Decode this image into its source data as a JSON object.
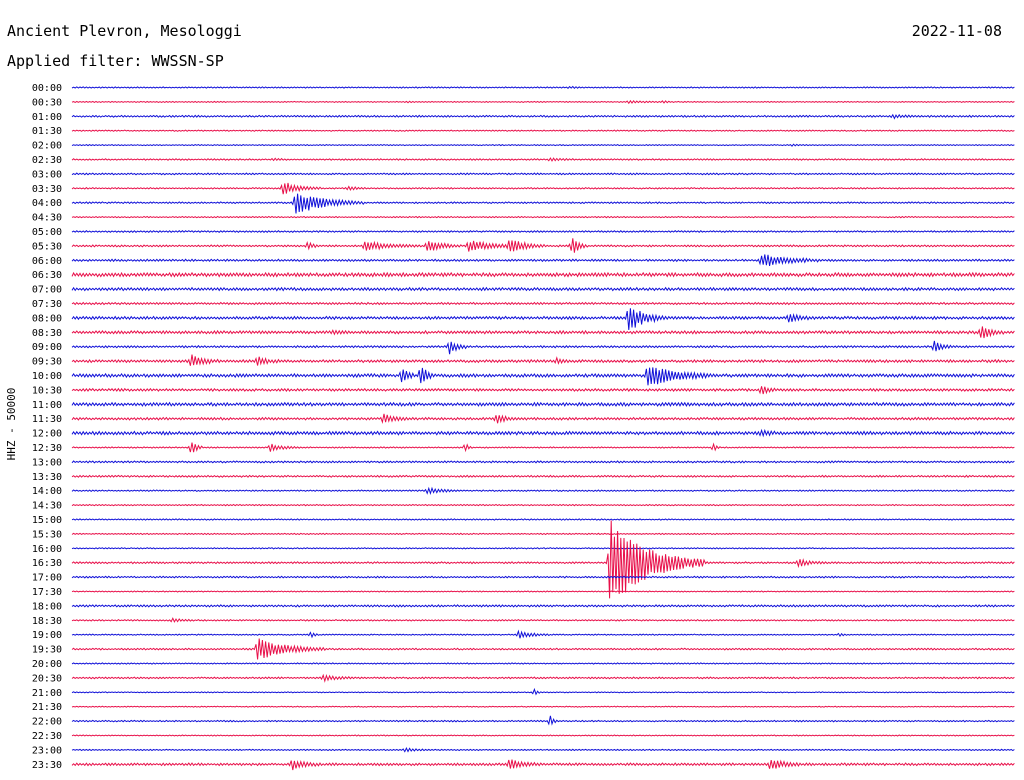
{
  "header": {
    "station": "Ancient Plevron, Mesologgi",
    "date": "2022-11-08",
    "filter": "Applied filter: WWSSN-SP"
  },
  "colors": {
    "trace_a": "#1010d8",
    "trace_b": "#e8104a"
  },
  "chart_data": {
    "type": "line",
    "title": "",
    "ylabel": "HHZ - 50000",
    "xlabel": "",
    "xlim": [
      0,
      30
    ],
    "grid": false,
    "legend": "none",
    "series": [
      {
        "time_label": "00:00",
        "color": "trace_a",
        "noise": 0.6,
        "events": [
          {
            "t": 15.8,
            "amp": 0.8,
            "dur": 0.4
          }
        ]
      },
      {
        "time_label": "00:30",
        "color": "trace_b",
        "noise": 0.5,
        "events": [
          {
            "t": 17.7,
            "amp": 1.2,
            "dur": 0.9
          },
          {
            "t": 18.8,
            "amp": 1.0,
            "dur": 0.3
          },
          {
            "t": 10.7,
            "amp": 0.8,
            "dur": 0.2
          }
        ]
      },
      {
        "time_label": "01:00",
        "color": "trace_a",
        "noise": 0.9,
        "events": [
          {
            "t": 26.1,
            "amp": 1.5,
            "dur": 0.8
          }
        ]
      },
      {
        "time_label": "01:30",
        "color": "trace_b",
        "noise": 0.6,
        "events": []
      },
      {
        "time_label": "02:00",
        "color": "trace_a",
        "noise": 0.5,
        "events": [
          {
            "t": 22.9,
            "amp": 1.0,
            "dur": 0.2
          }
        ]
      },
      {
        "time_label": "02:30",
        "color": "trace_b",
        "noise": 0.7,
        "events": [
          {
            "t": 15.2,
            "amp": 1.4,
            "dur": 0.7
          },
          {
            "t": 6.4,
            "amp": 1.0,
            "dur": 0.4
          }
        ]
      },
      {
        "time_label": "03:00",
        "color": "trace_a",
        "noise": 0.8,
        "events": []
      },
      {
        "time_label": "03:30",
        "color": "trace_b",
        "noise": 0.7,
        "events": [
          {
            "t": 6.7,
            "amp": 7.0,
            "dur": 1.0
          },
          {
            "t": 8.8,
            "amp": 2.0,
            "dur": 0.5
          }
        ]
      },
      {
        "time_label": "04:00",
        "color": "trace_a",
        "noise": 0.8,
        "events": [
          {
            "t": 7.1,
            "amp": 12.0,
            "dur": 1.8
          }
        ]
      },
      {
        "time_label": "04:30",
        "color": "trace_b",
        "noise": 0.6,
        "events": []
      },
      {
        "time_label": "05:00",
        "color": "trace_a",
        "noise": 0.8,
        "events": []
      },
      {
        "time_label": "05:30",
        "color": "trace_b",
        "noise": 0.9,
        "events": [
          {
            "t": 7.5,
            "amp": 4.0,
            "dur": 0.3
          },
          {
            "t": 9.3,
            "amp": 5.0,
            "dur": 1.4
          },
          {
            "t": 11.3,
            "amp": 6.0,
            "dur": 0.9
          },
          {
            "t": 12.6,
            "amp": 6.0,
            "dur": 1.4
          },
          {
            "t": 13.9,
            "amp": 7.0,
            "dur": 1.0
          },
          {
            "t": 15.9,
            "amp": 11.0,
            "dur": 0.4
          }
        ]
      },
      {
        "time_label": "06:00",
        "color": "trace_a",
        "noise": 1.0,
        "events": [
          {
            "t": 21.9,
            "amp": 7.0,
            "dur": 1.6
          }
        ]
      },
      {
        "time_label": "06:30",
        "color": "trace_b",
        "noise": 1.8,
        "events": []
      },
      {
        "time_label": "07:00",
        "color": "trace_a",
        "noise": 1.4,
        "events": []
      },
      {
        "time_label": "07:30",
        "color": "trace_b",
        "noise": 1.0,
        "events": []
      },
      {
        "time_label": "08:00",
        "color": "trace_a",
        "noise": 1.4,
        "events": [
          {
            "t": 17.7,
            "amp": 14.0,
            "dur": 1.0
          },
          {
            "t": 22.8,
            "amp": 4.0,
            "dur": 0.6
          }
        ]
      },
      {
        "time_label": "08:30",
        "color": "trace_b",
        "noise": 1.4,
        "events": [
          {
            "t": 28.9,
            "amp": 7.0,
            "dur": 0.6
          },
          {
            "t": 8.3,
            "amp": 2.0,
            "dur": 0.5
          }
        ]
      },
      {
        "time_label": "09:00",
        "color": "trace_a",
        "noise": 1.0,
        "events": [
          {
            "t": 12.0,
            "amp": 7.0,
            "dur": 0.5
          },
          {
            "t": 27.4,
            "amp": 6.0,
            "dur": 0.5
          }
        ]
      },
      {
        "time_label": "09:30",
        "color": "trace_b",
        "noise": 1.3,
        "events": [
          {
            "t": 3.8,
            "amp": 6.0,
            "dur": 0.7
          },
          {
            "t": 5.9,
            "amp": 4.0,
            "dur": 0.6
          },
          {
            "t": 15.4,
            "amp": 2.5,
            "dur": 0.4
          }
        ]
      },
      {
        "time_label": "10:00",
        "color": "trace_a",
        "noise": 1.6,
        "events": [
          {
            "t": 10.5,
            "amp": 9.0,
            "dur": 0.3
          },
          {
            "t": 11.1,
            "amp": 13.0,
            "dur": 0.3
          },
          {
            "t": 18.3,
            "amp": 12.0,
            "dur": 1.6
          }
        ]
      },
      {
        "time_label": "10:30",
        "color": "trace_b",
        "noise": 1.2,
        "events": [
          {
            "t": 21.9,
            "amp": 5.0,
            "dur": 0.4
          }
        ]
      },
      {
        "time_label": "11:00",
        "color": "trace_a",
        "noise": 1.6,
        "events": []
      },
      {
        "time_label": "11:30",
        "color": "trace_b",
        "noise": 1.2,
        "events": [
          {
            "t": 9.9,
            "amp": 5.0,
            "dur": 0.6
          },
          {
            "t": 13.5,
            "amp": 5.0,
            "dur": 0.5
          }
        ]
      },
      {
        "time_label": "12:00",
        "color": "trace_a",
        "noise": 1.6,
        "events": [
          {
            "t": 21.9,
            "amp": 2.0,
            "dur": 0.6
          }
        ]
      },
      {
        "time_label": "12:30",
        "color": "trace_b",
        "noise": 0.6,
        "events": [
          {
            "t": 3.8,
            "amp": 8.0,
            "dur": 0.3
          },
          {
            "t": 6.3,
            "amp": 4.0,
            "dur": 0.8
          },
          {
            "t": 12.5,
            "amp": 5.0,
            "dur": 0.2
          },
          {
            "t": 20.4,
            "amp": 4.0,
            "dur": 0.2
          }
        ]
      },
      {
        "time_label": "13:00",
        "color": "trace_a",
        "noise": 0.9,
        "events": []
      },
      {
        "time_label": "13:30",
        "color": "trace_b",
        "noise": 0.9,
        "events": []
      },
      {
        "time_label": "14:00",
        "color": "trace_a",
        "noise": 0.7,
        "events": [
          {
            "t": 11.3,
            "amp": 3.0,
            "dur": 0.9
          }
        ]
      },
      {
        "time_label": "14:30",
        "color": "trace_b",
        "noise": 0.6,
        "events": []
      },
      {
        "time_label": "15:00",
        "color": "trace_a",
        "noise": 0.6,
        "events": []
      },
      {
        "time_label": "15:30",
        "color": "trace_b",
        "noise": 0.6,
        "events": []
      },
      {
        "time_label": "16:00",
        "color": "trace_a",
        "noise": 0.6,
        "events": []
      },
      {
        "time_label": "16:30",
        "color": "trace_b",
        "noise": 0.9,
        "events": [
          {
            "t": 17.1,
            "amp": 45.0,
            "dur": 2.5
          },
          {
            "t": 23.1,
            "amp": 4.0,
            "dur": 0.7
          }
        ]
      },
      {
        "time_label": "17:00",
        "color": "trace_a",
        "noise": 0.8,
        "events": []
      },
      {
        "time_label": "17:30",
        "color": "trace_b",
        "noise": 0.5,
        "events": []
      },
      {
        "time_label": "18:00",
        "color": "trace_a",
        "noise": 1.0,
        "events": []
      },
      {
        "time_label": "18:30",
        "color": "trace_b",
        "noise": 0.7,
        "events": [
          {
            "t": 3.2,
            "amp": 2.0,
            "dur": 0.5
          }
        ]
      },
      {
        "time_label": "19:00",
        "color": "trace_a",
        "noise": 0.6,
        "events": [
          {
            "t": 7.6,
            "amp": 3.0,
            "dur": 0.2
          },
          {
            "t": 14.2,
            "amp": 4.0,
            "dur": 0.8
          },
          {
            "t": 24.4,
            "amp": 2.0,
            "dur": 0.2
          }
        ]
      },
      {
        "time_label": "19:30",
        "color": "trace_b",
        "noise": 0.8,
        "events": [
          {
            "t": 5.9,
            "amp": 11.0,
            "dur": 1.8
          }
        ]
      },
      {
        "time_label": "20:00",
        "color": "trace_a",
        "noise": 0.6,
        "events": []
      },
      {
        "time_label": "20:30",
        "color": "trace_b",
        "noise": 0.8,
        "events": [
          {
            "t": 8.0,
            "amp": 3.0,
            "dur": 0.8
          }
        ]
      },
      {
        "time_label": "21:00",
        "color": "trace_a",
        "noise": 0.5,
        "events": [
          {
            "t": 14.7,
            "amp": 3.0,
            "dur": 0.2
          }
        ]
      },
      {
        "time_label": "21:30",
        "color": "trace_b",
        "noise": 0.5,
        "events": []
      },
      {
        "time_label": "22:00",
        "color": "trace_a",
        "noise": 0.7,
        "events": [
          {
            "t": 15.2,
            "amp": 6.0,
            "dur": 0.2
          }
        ]
      },
      {
        "time_label": "22:30",
        "color": "trace_b",
        "noise": 0.5,
        "events": []
      },
      {
        "time_label": "23:00",
        "color": "trace_a",
        "noise": 0.6,
        "events": [
          {
            "t": 10.6,
            "amp": 2.0,
            "dur": 0.6
          }
        ]
      },
      {
        "time_label": "23:30",
        "color": "trace_b",
        "noise": 1.2,
        "events": [
          {
            "t": 7.0,
            "amp": 5.0,
            "dur": 0.8
          },
          {
            "t": 13.9,
            "amp": 5.0,
            "dur": 0.8
          },
          {
            "t": 22.2,
            "amp": 6.0,
            "dur": 0.8
          }
        ]
      }
    ]
  }
}
